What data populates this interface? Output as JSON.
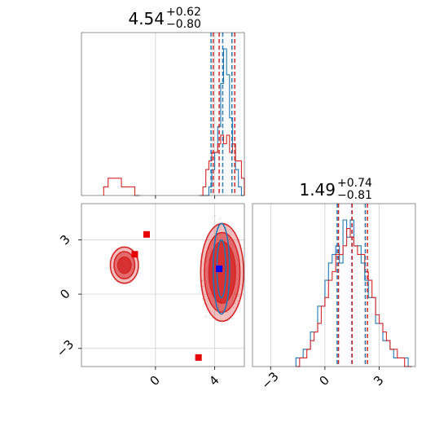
{
  "chart_data": {
    "type": "corner",
    "colors": {
      "series_a": "#1f77b4",
      "series_b": "#d62728",
      "truth": "#0000ff",
      "secondary_markers": "#e60000"
    },
    "panels": [
      {
        "name": "marginal-1",
        "type": "step-histogram",
        "title": {
          "median": "4.54",
          "plus": "+0.62",
          "minus": "−0.80"
        },
        "xlim": [
          -5.0,
          6.0
        ],
        "x_ticks": [
          0,
          4
        ],
        "bins": {
          "start": 3.0,
          "width": 0.2
        },
        "series": [
          {
            "key": "series_a",
            "counts": [
              0,
              0,
              0,
              1,
              3,
              5,
              8,
              13,
              17,
              14,
              9,
              6,
              3,
              1,
              0
            ]
          },
          {
            "key": "series_b",
            "counts": [
              0,
              1,
              3,
              4,
              5,
              5,
              6,
              7,
              6,
              7,
              5,
              6,
              4,
              4,
              2
            ]
          }
        ],
        "series_b_low_bump": {
          "bins": {
            "start": -3.5,
            "width": 0.3
          },
          "counts": [
            1,
            2,
            2,
            2,
            1,
            1,
            1,
            0
          ]
        },
        "quantile_lines": [
          {
            "key": "series_a",
            "x": [
              3.75,
              4.54,
              5.16
            ]
          },
          {
            "key": "series_b",
            "x": [
              3.9,
              4.3,
              5.35
            ]
          }
        ]
      },
      {
        "name": "joint",
        "type": "2d-contour",
        "xlim": [
          -5.0,
          6.0
        ],
        "ylim": [
          -4.0,
          5.0
        ],
        "x_ticks": [
          0,
          4
        ],
        "y_ticks": [
          -3,
          0,
          3
        ],
        "truth_marker": {
          "x": 4.3,
          "y": 1.4
        },
        "secondary_markers": [
          {
            "x": -0.6,
            "y": 3.3
          },
          {
            "x": -1.4,
            "y": 2.2
          },
          {
            "x": 2.9,
            "y": -3.5
          }
        ],
        "contours": [
          {
            "key": "series_b",
            "center": [
              4.5,
              1.2
            ],
            "rx": [
              0.9,
              1.2,
              1.45
            ],
            "ry": [
              1.7,
              2.2,
              2.7
            ]
          },
          {
            "key": "series_b",
            "center": [
              -2.1,
              1.6
            ],
            "rx": [
              0.45,
              0.7,
              0.95
            ],
            "ry": [
              0.45,
              0.75,
              1.0
            ]
          },
          {
            "key": "series_a",
            "center": [
              4.45,
              1.4
            ],
            "rx": [
              0.3,
              0.55
            ],
            "ry": [
              1.6,
              2.5
            ]
          }
        ]
      },
      {
        "name": "marginal-2",
        "type": "step-histogram",
        "title": {
          "median": "1.49",
          "plus": "+0.74",
          "minus": "−0.81"
        },
        "xlim": [
          -4.0,
          5.0
        ],
        "x_ticks": [
          -3,
          0,
          3
        ],
        "bins": {
          "start": -1.6,
          "width": 0.2
        },
        "series": [
          {
            "key": "series_a",
            "counts": [
              1,
              1,
              2,
              2,
              4,
              4,
              7,
              7,
              10,
              12,
              13,
              14,
              12,
              17,
              15,
              17,
              14,
              14,
              12,
              10,
              8,
              8,
              5,
              5,
              3,
              3,
              2,
              1,
              1,
              1,
              1,
              0
            ]
          },
          {
            "key": "series_b",
            "counts": [
              0,
              1,
              1,
              2,
              3,
              4,
              5,
              7,
              8,
              10,
              11,
              13,
              13,
              14,
              16,
              15,
              14,
              13,
              13,
              11,
              10,
              8,
              6,
              5,
              4,
              3,
              2,
              2,
              1,
              1,
              0,
              0
            ]
          }
        ],
        "quantile_lines": [
          {
            "key": "series_a",
            "x": [
              0.68,
              1.49,
              2.23
            ]
          },
          {
            "key": "series_b",
            "x": [
              0.75,
              1.5,
              2.35
            ]
          }
        ]
      }
    ]
  }
}
